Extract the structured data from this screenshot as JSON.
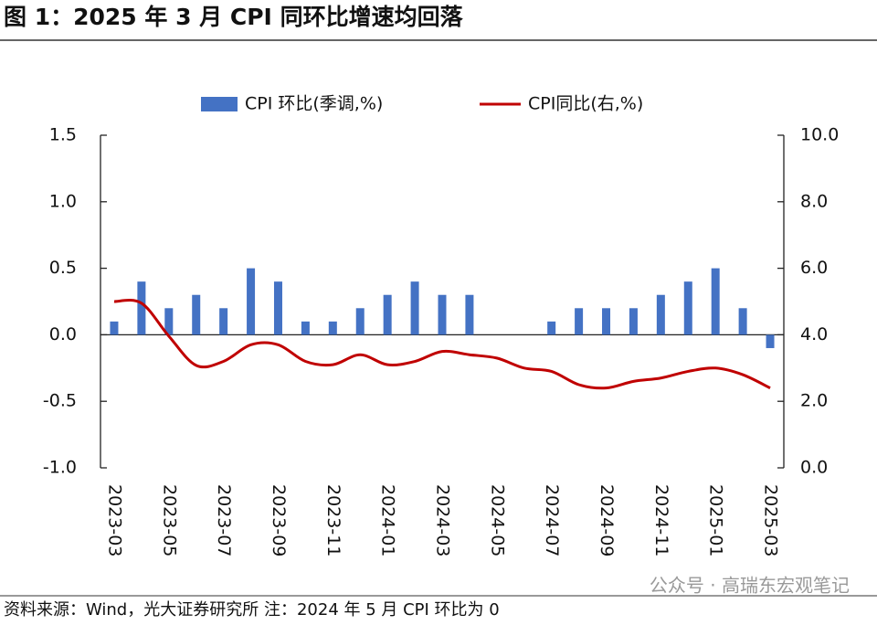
{
  "chart_data": {
    "type": "bar",
    "title": "图 1：2025 年 3 月 CPI 同环比增速均回落",
    "note": "资料来源：Wind，光大证券研究所    注：2024 年 5 月 CPI 环比为 0",
    "watermark": "公众号 · 高瑞东宏观笔记",
    "categories": [
      "2023-03",
      null,
      "2023-05",
      null,
      "2023-07",
      null,
      "2023-09",
      null,
      "2023-11",
      null,
      "2024-01",
      null,
      "2024-03",
      null,
      "2024-05",
      null,
      "2024-07",
      null,
      "2024-09",
      null,
      "2024-11",
      null,
      "2025-01",
      null,
      "2025-03"
    ],
    "series": [
      {
        "name": "CPI 环比(季调,%)",
        "type": "bar",
        "color": "#4472c4",
        "values": [
          0.1,
          0.4,
          0.2,
          0.3,
          0.2,
          0.5,
          0.4,
          0.1,
          0.1,
          0.2,
          0.3,
          0.4,
          0.3,
          0.3,
          0,
          0,
          0.1,
          0.2,
          0.2,
          0.2,
          0.3,
          0.4,
          0.5,
          0.2,
          -0.1
        ]
      },
      {
        "name": "CPI同比(右,%)",
        "type": "line",
        "axis": "y2",
        "color": "#c00000",
        "values": [
          5.0,
          4.95,
          3.96,
          3.08,
          3.2,
          3.7,
          3.7,
          3.2,
          3.1,
          3.4,
          3.1,
          3.2,
          3.5,
          3.4,
          3.3,
          3.0,
          2.9,
          2.5,
          2.4,
          2.6,
          2.7,
          2.9,
          3.0,
          2.8,
          2.4
        ]
      }
    ],
    "ylim": [
      -1,
      1.5
    ],
    "yticks": [
      {
        "value": -1,
        "label": "-1.0"
      },
      -0.5,
      {
        "value": 0,
        "label": "0.0"
      },
      0.5,
      {
        "value": 1,
        "label": "1.0"
      },
      1.5
    ],
    "y2lim": [
      0,
      10
    ],
    "y2ticks": [
      {
        "value": 0,
        "label": "0.0"
      },
      {
        "value": 2,
        "label": "2.0"
      },
      {
        "value": 4,
        "label": "4.0"
      },
      {
        "value": 6,
        "label": "6.0"
      },
      {
        "value": 8,
        "label": "8.0"
      },
      {
        "value": 10,
        "label": "10.0"
      }
    ],
    "legend": "top"
  }
}
